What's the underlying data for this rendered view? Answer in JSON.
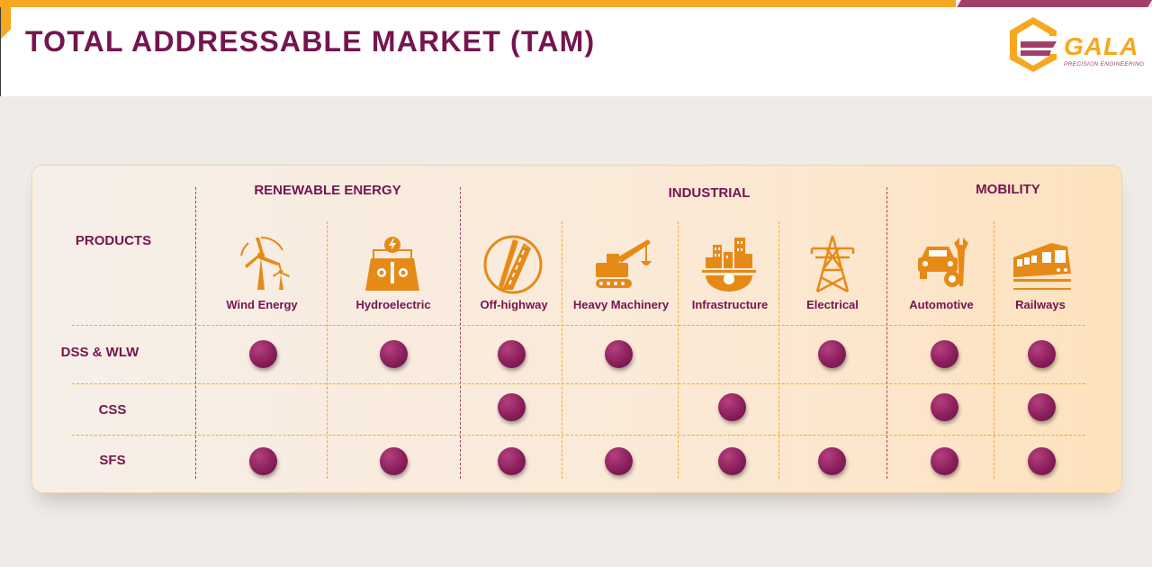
{
  "header": {
    "title": "TOTAL ADDRESSABLE MARKET (TAM)"
  },
  "logo": {
    "word": "GALA",
    "tagline": "PRECISION ENGINEERING"
  },
  "colors": {
    "brand_purple": "#75154f",
    "accent_orange": "#f6a821",
    "dot_purple": "#8a1f5c"
  },
  "table": {
    "products_header": "PRODUCTS",
    "groups": [
      {
        "label": "RENEWABLE ENERGY"
      },
      {
        "label": "INDUSTRIAL"
      },
      {
        "label": "MOBILITY"
      }
    ],
    "columns": [
      {
        "label": "Wind Energy",
        "icon": "wind-turbine-icon"
      },
      {
        "label": "Hydroelectric",
        "icon": "hydro-dam-icon"
      },
      {
        "label": "Off-highway",
        "icon": "road-icon"
      },
      {
        "label": "Heavy Machinery",
        "icon": "crane-truck-icon"
      },
      {
        "label": "Infrastructure",
        "icon": "city-gear-icon"
      },
      {
        "label": "Electrical",
        "icon": "power-tower-icon"
      },
      {
        "label": "Automotive",
        "icon": "car-wrench-icon"
      },
      {
        "label": "Railways",
        "icon": "train-icon"
      }
    ],
    "rows": [
      {
        "label": "DSS & WLW",
        "marks": [
          true,
          true,
          true,
          true,
          false,
          true,
          true,
          true
        ]
      },
      {
        "label": "CSS",
        "marks": [
          false,
          false,
          true,
          false,
          true,
          false,
          true,
          true
        ]
      },
      {
        "label": "SFS",
        "marks": [
          true,
          true,
          true,
          true,
          true,
          true,
          true,
          true
        ]
      }
    ]
  }
}
